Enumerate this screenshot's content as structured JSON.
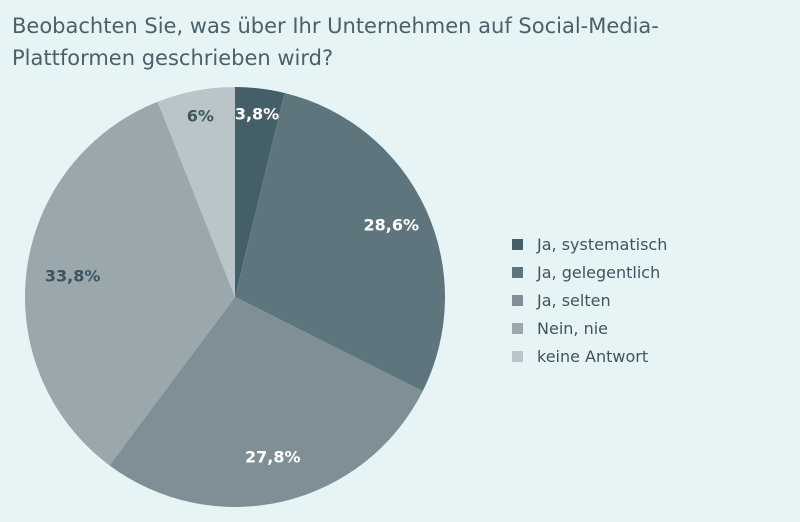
{
  "chart_data": {
    "type": "pie",
    "title": "Beobachten Sie, was über Ihr Unternehmen auf Social-Media-Plattformen geschrieben wird?",
    "slices": [
      {
        "label": "Ja, systematisch",
        "value": 3.8,
        "display": "3,8%",
        "color": "#455f69",
        "label_color": "#ffffff"
      },
      {
        "label": "Ja, gelegentlich",
        "value": 28.6,
        "display": "28,6%",
        "color": "#5f757d",
        "label_color": "#ffffff"
      },
      {
        "label": "Ja, selten",
        "value": 27.8,
        "display": "27,8%",
        "color": "#7e8f95",
        "label_color": "#ffffff"
      },
      {
        "label": "Nein, nie",
        "value": 33.8,
        "display": "33,8%",
        "color": "#9aa8ad",
        "label_color": "#3e5560"
      },
      {
        "label": "keine Antwort",
        "value": 6,
        "display": "6%",
        "color": "#b9c5c8",
        "label_color": "#3e5560"
      }
    ],
    "legend_position": "right"
  }
}
